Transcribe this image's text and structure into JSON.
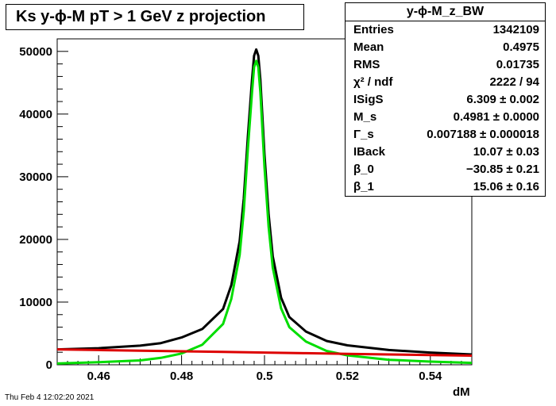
{
  "title": "Ks y-ϕ-M pT > 1 GeV z projection",
  "stats": {
    "name": "y-ϕ-M_z_BW",
    "rows": [
      {
        "label": "Entries",
        "value": "1342109"
      },
      {
        "label": "Mean",
        "value": "0.4975"
      },
      {
        "label": "RMS",
        "value": "0.01735"
      },
      {
        "label": "χ² / ndf",
        "value": "2222 / 94"
      },
      {
        "label": "ISigS",
        "value": "6.309 ± 0.002"
      },
      {
        "label": "M_s",
        "value": "0.4981 ± 0.0000"
      },
      {
        "label": "Γ_s",
        "value": "0.007188 ± 0.000018"
      },
      {
        "label": "IBack",
        "value": "10.07 ± 0.03"
      },
      {
        "label": "β_0",
        "value": "−30.85 ± 0.21"
      },
      {
        "label": "β_1",
        "value": "15.06 ± 0.16"
      }
    ]
  },
  "date": "Thu Feb  4 12:02:20 2021",
  "chart_data": {
    "type": "line",
    "xlabel": "dM",
    "ylabel": "",
    "xlim": [
      0.45,
      0.55
    ],
    "ylim": [
      0,
      52000
    ],
    "xticks": [
      0.46,
      0.48,
      0.5,
      0.52,
      0.54
    ],
    "xtick_labels": [
      "0.46",
      "0.48",
      "0.5",
      "0.52",
      "0.54"
    ],
    "yticks": [
      0,
      10000,
      20000,
      30000,
      40000,
      50000
    ],
    "ytick_labels": [
      "0",
      "10000",
      "20000",
      "30000",
      "40000",
      "50000"
    ],
    "series": [
      {
        "role": "histogram",
        "color": "#000000",
        "x": [
          0.45,
          0.46,
          0.47,
          0.475,
          0.48,
          0.485,
          0.49,
          0.492,
          0.494,
          0.495,
          0.496,
          0.497,
          0.4975,
          0.498,
          0.4985,
          0.499,
          0.5,
          0.501,
          0.502,
          0.504,
          0.506,
          0.51,
          0.515,
          0.52,
          0.53,
          0.54,
          0.55
        ],
        "y": [
          2400,
          2600,
          3000,
          3400,
          4300,
          5600,
          8800,
          12500,
          19500,
          26000,
          36000,
          45000,
          49500,
          50500,
          49500,
          45000,
          33000,
          23500,
          17000,
          10500,
          7500,
          5200,
          3700,
          3100,
          2300,
          1900,
          1600
        ]
      },
      {
        "role": "fit-total",
        "color": "#000000",
        "x": [
          0.45,
          0.46,
          0.47,
          0.475,
          0.48,
          0.485,
          0.49,
          0.492,
          0.494,
          0.495,
          0.496,
          0.497,
          0.4975,
          0.498,
          0.4985,
          0.499,
          0.5,
          0.501,
          0.502,
          0.504,
          0.506,
          0.51,
          0.515,
          0.52,
          0.53,
          0.54,
          0.55
        ],
        "y": [
          2450,
          2650,
          3050,
          3450,
          4350,
          5700,
          8900,
          12700,
          19700,
          26500,
          36500,
          45500,
          49300,
          50300,
          49300,
          45500,
          33500,
          24000,
          17300,
          10700,
          7600,
          5300,
          3800,
          3100,
          2350,
          1950,
          1650
        ]
      },
      {
        "role": "fit-signal",
        "color": "#00dd00",
        "x": [
          0.45,
          0.46,
          0.47,
          0.475,
          0.48,
          0.485,
          0.49,
          0.492,
          0.494,
          0.495,
          0.496,
          0.497,
          0.4975,
          0.498,
          0.4985,
          0.499,
          0.5,
          0.501,
          0.502,
          0.504,
          0.506,
          0.51,
          0.515,
          0.52,
          0.53,
          0.54,
          0.55
        ],
        "y": [
          200,
          400,
          700,
          1100,
          1800,
          3200,
          6500,
          10500,
          17500,
          24500,
          34500,
          43500,
          47500,
          48500,
          47500,
          43500,
          31500,
          22000,
          15500,
          9000,
          6000,
          3700,
          2200,
          1500,
          800,
          500,
          300
        ]
      },
      {
        "role": "fit-background",
        "color": "#dd0000",
        "x": [
          0.45,
          0.46,
          0.47,
          0.48,
          0.49,
          0.5,
          0.51,
          0.52,
          0.53,
          0.54,
          0.55
        ],
        "y": [
          2450,
          2350,
          2250,
          2150,
          2050,
          1950,
          1850,
          1750,
          1650,
          1550,
          1450
        ]
      }
    ]
  }
}
